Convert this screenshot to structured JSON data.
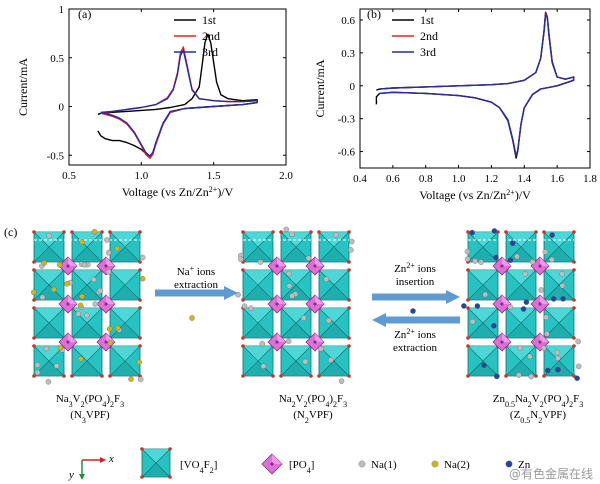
{
  "chart_data": [
    {
      "type": "line",
      "panel_label": "(a)",
      "xlabel": "Voltage (vs Zn/Zn",
      "xlabel_sup": "2+",
      "xlabel_tail": ")/V",
      "ylabel": "Current/mA",
      "xlim": [
        0.5,
        2.0
      ],
      "ylim": [
        -0.6,
        1.0
      ],
      "xticks": [
        0.5,
        1.0,
        1.5,
        2.0
      ],
      "xtick_labels": [
        "0.5",
        "1.0",
        "1.5",
        "2.0"
      ],
      "yticks": [
        -0.5,
        0,
        0.5,
        1.0
      ],
      "ytick_labels": [
        "-0.5",
        "0",
        "0.5",
        "1"
      ],
      "legend_position": "top-right",
      "series": [
        {
          "name": "1st",
          "color": "#000000",
          "x": [
            0.7,
            0.72,
            0.75,
            0.8,
            0.85,
            0.9,
            0.95,
            1.0,
            1.03,
            1.06,
            1.08,
            1.1,
            1.15,
            1.2,
            1.3,
            1.4,
            1.5,
            1.6,
            1.7,
            1.8,
            1.8,
            1.7,
            1.6,
            1.55,
            1.52,
            1.5,
            1.48,
            1.46,
            1.44,
            1.42,
            1.4,
            1.35,
            1.3,
            1.2,
            1.1,
            1.0,
            0.9,
            0.8,
            0.72,
            0.7
          ],
          "y": [
            -0.25,
            -0.3,
            -0.33,
            -0.35,
            -0.35,
            -0.37,
            -0.4,
            -0.44,
            -0.48,
            -0.51,
            -0.47,
            -0.38,
            -0.18,
            -0.06,
            -0.02,
            -0.01,
            0.0,
            0.01,
            0.02,
            0.04,
            0.07,
            0.06,
            0.08,
            0.12,
            0.25,
            0.45,
            0.65,
            0.74,
            0.66,
            0.42,
            0.2,
            0.08,
            0.02,
            -0.01,
            -0.03,
            -0.04,
            -0.05,
            -0.06,
            -0.07,
            -0.08
          ]
        },
        {
          "name": "2nd",
          "color": "#e8211b",
          "x": [
            0.72,
            0.75,
            0.8,
            0.85,
            0.9,
            0.95,
            1.0,
            1.03,
            1.06,
            1.08,
            1.1,
            1.15,
            1.2,
            1.3,
            1.4,
            1.5,
            1.6,
            1.7,
            1.8,
            1.8,
            1.7,
            1.6,
            1.5,
            1.4,
            1.35,
            1.32,
            1.29,
            1.27,
            1.25,
            1.22,
            1.18,
            1.1,
            1.0,
            0.9,
            0.8,
            0.72
          ],
          "y": [
            -0.07,
            -0.08,
            -0.1,
            -0.13,
            -0.18,
            -0.27,
            -0.4,
            -0.49,
            -0.53,
            -0.49,
            -0.39,
            -0.18,
            -0.06,
            -0.02,
            -0.01,
            0.0,
            0.01,
            0.02,
            0.04,
            0.06,
            0.05,
            0.05,
            0.06,
            0.08,
            0.18,
            0.4,
            0.61,
            0.55,
            0.35,
            0.18,
            0.09,
            0.02,
            -0.01,
            -0.03,
            -0.05,
            -0.07
          ]
        },
        {
          "name": "3rd",
          "color": "#1f2fa8",
          "x": [
            0.72,
            0.75,
            0.8,
            0.85,
            0.9,
            0.95,
            1.0,
            1.03,
            1.06,
            1.08,
            1.1,
            1.15,
            1.2,
            1.3,
            1.4,
            1.5,
            1.6,
            1.7,
            1.8,
            1.8,
            1.7,
            1.6,
            1.5,
            1.4,
            1.35,
            1.32,
            1.29,
            1.27,
            1.25,
            1.22,
            1.18,
            1.1,
            1.0,
            0.9,
            0.8,
            0.72
          ],
          "y": [
            -0.06,
            -0.07,
            -0.09,
            -0.12,
            -0.17,
            -0.26,
            -0.39,
            -0.47,
            -0.51,
            -0.47,
            -0.37,
            -0.17,
            -0.05,
            -0.02,
            -0.01,
            0.0,
            0.01,
            0.02,
            0.04,
            0.06,
            0.05,
            0.05,
            0.06,
            0.08,
            0.17,
            0.38,
            0.58,
            0.52,
            0.33,
            0.17,
            0.08,
            0.02,
            -0.01,
            -0.03,
            -0.05,
            -0.06
          ]
        }
      ]
    },
    {
      "type": "line",
      "panel_label": "(b)",
      "xlabel": "Voltage (vs Zn/Zn",
      "xlabel_sup": "2+",
      "xlabel_tail": ")/V",
      "ylabel": "Current/mA",
      "xlim": [
        0.4,
        1.8
      ],
      "ylim": [
        -0.75,
        0.7
      ],
      "xticks": [
        0.4,
        0.6,
        0.8,
        1.0,
        1.2,
        1.4,
        1.6,
        1.8
      ],
      "xtick_labels": [
        "0.4",
        "0.6",
        "0.8",
        "1.0",
        "1.2",
        "1.4",
        "1.6",
        "1.8"
      ],
      "yticks": [
        -0.6,
        -0.3,
        0,
        0.3,
        0.6
      ],
      "ytick_labels": [
        "-0.6",
        "-0.3",
        "0",
        "0.3",
        "0.6"
      ],
      "legend_position": "top-left",
      "series": [
        {
          "name": "1st",
          "color": "#000000",
          "x": [
            0.5,
            0.5,
            0.52,
            0.6,
            0.8,
            1.0,
            1.1,
            1.2,
            1.25,
            1.3,
            1.33,
            1.35,
            1.36,
            1.38,
            1.4,
            1.45,
            1.5,
            1.6,
            1.7,
            1.7,
            1.65,
            1.6,
            1.57,
            1.55,
            1.54,
            1.53,
            1.52,
            1.5,
            1.47,
            1.4,
            1.3,
            1.2,
            1.0,
            0.8,
            0.6,
            0.52,
            0.5
          ],
          "y": [
            -0.17,
            -0.1,
            -0.07,
            -0.06,
            -0.07,
            -0.09,
            -0.11,
            -0.15,
            -0.2,
            -0.32,
            -0.5,
            -0.66,
            -0.6,
            -0.35,
            -0.2,
            -0.08,
            -0.03,
            0.0,
            0.05,
            0.08,
            0.06,
            0.08,
            0.22,
            0.48,
            0.63,
            0.67,
            0.5,
            0.25,
            0.12,
            0.05,
            0.02,
            0.01,
            0.0,
            -0.01,
            -0.02,
            -0.03,
            -0.04
          ]
        },
        {
          "name": "2nd",
          "color": "#e8211b",
          "x": [
            0.52,
            0.6,
            0.8,
            1.0,
            1.1,
            1.2,
            1.25,
            1.3,
            1.33,
            1.35,
            1.36,
            1.38,
            1.4,
            1.45,
            1.5,
            1.6,
            1.7,
            1.7,
            1.65,
            1.6,
            1.57,
            1.55,
            1.54,
            1.53,
            1.52,
            1.5,
            1.47,
            1.4,
            1.3,
            1.2,
            1.0,
            0.8,
            0.6,
            0.52
          ],
          "y": [
            -0.07,
            -0.06,
            -0.07,
            -0.09,
            -0.11,
            -0.15,
            -0.2,
            -0.31,
            -0.49,
            -0.64,
            -0.59,
            -0.35,
            -0.2,
            -0.08,
            -0.03,
            0.0,
            0.05,
            0.08,
            0.06,
            0.08,
            0.21,
            0.47,
            0.63,
            0.66,
            0.49,
            0.25,
            0.12,
            0.05,
            0.02,
            0.01,
            0.0,
            -0.01,
            -0.02,
            -0.03
          ]
        },
        {
          "name": "3rd",
          "color": "#1f2fa8",
          "x": [
            0.52,
            0.6,
            0.8,
            1.0,
            1.1,
            1.2,
            1.25,
            1.3,
            1.33,
            1.35,
            1.36,
            1.38,
            1.4,
            1.45,
            1.5,
            1.6,
            1.7,
            1.7,
            1.65,
            1.6,
            1.57,
            1.55,
            1.54,
            1.53,
            1.52,
            1.5,
            1.47,
            1.4,
            1.3,
            1.2,
            1.0,
            0.8,
            0.6,
            0.52
          ],
          "y": [
            -0.07,
            -0.06,
            -0.07,
            -0.09,
            -0.11,
            -0.15,
            -0.2,
            -0.31,
            -0.49,
            -0.64,
            -0.59,
            -0.35,
            -0.2,
            -0.08,
            -0.03,
            0.0,
            0.05,
            0.08,
            0.06,
            0.08,
            0.21,
            0.46,
            0.62,
            0.65,
            0.49,
            0.25,
            0.12,
            0.05,
            0.02,
            0.01,
            0.0,
            -0.01,
            -0.02,
            -0.03
          ]
        }
      ]
    }
  ],
  "structure_panel": {
    "panel_label": "(c)",
    "colors": {
      "vo4f2": "#27c3c3",
      "vo4f2_edge": "#0f6f6f",
      "po4": "#dd6fd6",
      "po4_edge": "#8e2e8a",
      "na1": "#bdbdbd",
      "na2": "#d1b21f",
      "zn": "#24479a",
      "f_atom": "#c0392b",
      "arrow": "#5f9bd1",
      "axis_x": "#d62020",
      "axis_y": "#1f8f3a"
    },
    "structures": [
      {
        "formula_html": "Na<sub>3</sub>V<sub>2</sub>(PO<sub>4</sub>)<sub>2</sub>F<sub>3</sub>",
        "abbr_html": "(N<sub>3</sub>VPF)",
        "ions": [
          "na1",
          "na2"
        ]
      },
      {
        "formula_html": "Na<sub>2</sub>V<sub>2</sub>(PO<sub>4</sub>)<sub>2</sub>F<sub>3</sub>",
        "abbr_html": "(N<sub>2</sub>VPF)",
        "ions": [
          "na1"
        ]
      },
      {
        "formula_html": "Zn<sub>0.5</sub>Na<sub>2</sub>V<sub>2</sub>(PO<sub>4</sub>)<sub>2</sub>F<sub>3</sub>",
        "abbr_html": "(Z<sub>0.5</sub>N<sub>2</sub>VPF)",
        "ions": [
          "na1",
          "zn"
        ]
      }
    ],
    "transitions": [
      {
        "label_html": "Na<tspan baseline-shift=\"super\" font-size=\"8\">+</tspan> ions",
        "label2": "extraction",
        "direction": "right",
        "ion": "na2"
      },
      {
        "label_html": "Zn<tspan baseline-shift=\"super\" font-size=\"8\">2+</tspan> ions",
        "label2": "insertion",
        "direction": "right",
        "ion": "zn"
      },
      {
        "label_html": "Zn<tspan baseline-shift=\"super\" font-size=\"8\">2+</tspan> ions",
        "label2": "extraction",
        "direction": "left",
        "ion": "zn"
      }
    ],
    "legend": {
      "axis_x": "x",
      "axis_y": "y",
      "items": [
        {
          "kind": "vo4f2",
          "label_html": "[VO<tspan baseline-shift=\"sub\" font-size=\"8\">4</tspan>F<tspan baseline-shift=\"sub\" font-size=\"8\">2</tspan>]"
        },
        {
          "kind": "po4",
          "label_html": "[PO<tspan baseline-shift=\"sub\" font-size=\"8\">4</tspan>]"
        },
        {
          "kind": "na1",
          "label_html": "Na(1)"
        },
        {
          "kind": "na2",
          "label_html": "Na(2)"
        },
        {
          "kind": "zn",
          "label_html": "Zn"
        }
      ]
    }
  },
  "watermark": "@有色金属在线"
}
